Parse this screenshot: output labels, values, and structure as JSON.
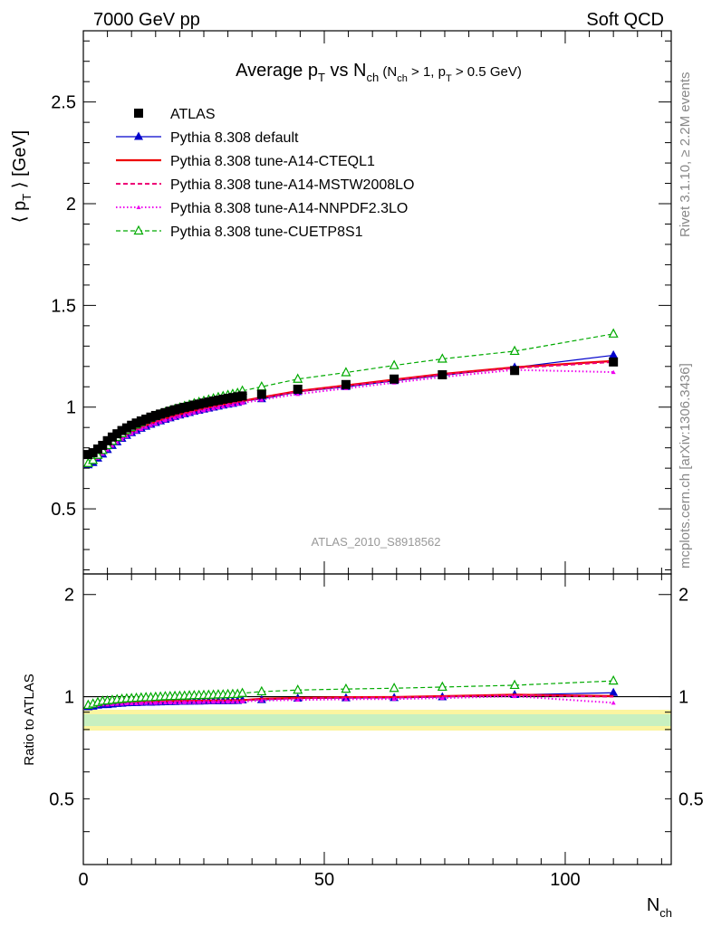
{
  "header": {
    "left": "7000 GeV pp",
    "right": "Soft QCD"
  },
  "side_labels": {
    "rivet": "Rivet 3.1.10, ≥ 2.2M events",
    "mcplots": "mcplots.cern.ch [arXiv:1306.3436]"
  },
  "analysis_tag": "ATLAS_2010_S8918562",
  "chart_data": {
    "type": "line",
    "title": "Average pT vs Nch (Nch > 1, pT > 0.5 GeV)",
    "xlabel": "Nch",
    "ylabel": "⟨ pT ⟩ [GeV]",
    "ratio_ylabel": "Ratio to ATLAS",
    "xlim": [
      0,
      122
    ],
    "ylim": [
      0.18,
      2.85
    ],
    "ratio_ylim": [
      0.32,
      2.3
    ],
    "x_ticks": [
      0,
      50,
      100
    ],
    "y_ticks": [
      0.5,
      1,
      1.5,
      2,
      2.5
    ],
    "ratio_ticks": [
      0.5,
      1,
      2
    ],
    "legend_position": "top-left",
    "x": [
      1,
      2,
      3,
      4,
      5,
      6,
      7,
      8,
      9,
      10,
      11,
      12,
      13,
      14,
      15,
      16,
      17,
      18,
      19,
      20,
      21,
      22,
      23,
      24,
      25,
      26,
      27,
      28,
      29,
      30,
      31,
      32,
      33,
      37,
      44.5,
      54.5,
      64.5,
      74.5,
      89.5,
      110
    ],
    "series": [
      {
        "name": "ATLAS",
        "color": "#000000",
        "style": "data",
        "values": [
          0.767,
          0.776,
          0.794,
          0.812,
          0.835,
          0.853,
          0.869,
          0.885,
          0.898,
          0.911,
          0.922,
          0.932,
          0.941,
          0.951,
          0.959,
          0.966,
          0.973,
          0.98,
          0.987,
          0.993,
          0.999,
          1.004,
          1.01,
          1.015,
          1.02,
          1.025,
          1.03,
          1.034,
          1.039,
          1.043,
          1.047,
          1.051,
          1.055,
          1.063,
          1.088,
          1.111,
          1.138,
          1.159,
          1.18,
          1.222
        ]
      },
      {
        "name": "Pythia 8.308 default",
        "color": "#0000cc",
        "style": "solid-tri",
        "values": [
          0.715,
          0.726,
          0.748,
          0.768,
          0.79,
          0.81,
          0.828,
          0.845,
          0.86,
          0.873,
          0.884,
          0.895,
          0.905,
          0.914,
          0.923,
          0.931,
          0.939,
          0.946,
          0.953,
          0.96,
          0.966,
          0.972,
          0.978,
          0.983,
          0.989,
          0.994,
          0.999,
          1.004,
          1.009,
          1.013,
          1.017,
          1.022,
          1.03,
          1.04,
          1.075,
          1.1,
          1.129,
          1.156,
          1.195,
          1.255
        ]
      },
      {
        "name": "Pythia 8.308 tune-A14-CTEQL1",
        "color": "#ee0000",
        "style": "solid",
        "values": [
          0.722,
          0.733,
          0.755,
          0.775,
          0.797,
          0.816,
          0.834,
          0.85,
          0.865,
          0.878,
          0.889,
          0.9,
          0.91,
          0.919,
          0.928,
          0.936,
          0.944,
          0.951,
          0.958,
          0.964,
          0.97,
          0.976,
          0.982,
          0.987,
          0.993,
          0.998,
          1.003,
          1.008,
          1.012,
          1.017,
          1.021,
          1.025,
          1.03,
          1.048,
          1.079,
          1.107,
          1.135,
          1.163,
          1.196,
          1.227
        ]
      },
      {
        "name": "Pythia 8.308 tune-A14-MSTW2008LO",
        "color": "#ee0077",
        "style": "dashed",
        "values": [
          0.72,
          0.731,
          0.753,
          0.773,
          0.795,
          0.814,
          0.832,
          0.848,
          0.863,
          0.876,
          0.887,
          0.898,
          0.908,
          0.917,
          0.926,
          0.934,
          0.942,
          0.949,
          0.956,
          0.962,
          0.968,
          0.974,
          0.98,
          0.985,
          0.991,
          0.996,
          1.001,
          1.006,
          1.01,
          1.015,
          1.019,
          1.023,
          1.028,
          1.045,
          1.076,
          1.104,
          1.132,
          1.16,
          1.192,
          1.222
        ]
      },
      {
        "name": "Pythia 8.308 tune-A14-NNPDF2.3LO",
        "color": "#ee00ee",
        "style": "dotted",
        "values": [
          0.718,
          0.729,
          0.75,
          0.77,
          0.791,
          0.81,
          0.827,
          0.843,
          0.857,
          0.87,
          0.881,
          0.892,
          0.902,
          0.911,
          0.919,
          0.927,
          0.935,
          0.942,
          0.949,
          0.955,
          0.961,
          0.967,
          0.973,
          0.978,
          0.984,
          0.989,
          0.994,
          0.999,
          1.003,
          1.008,
          1.012,
          1.016,
          1.02,
          1.036,
          1.064,
          1.092,
          1.12,
          1.148,
          1.183,
          1.172
        ]
      },
      {
        "name": "Pythia 8.308 tune-CUETP8S1",
        "color": "#00aa00",
        "style": "dashed-opentri",
        "values": [
          0.724,
          0.739,
          0.764,
          0.788,
          0.812,
          0.833,
          0.852,
          0.87,
          0.886,
          0.9,
          0.913,
          0.925,
          0.936,
          0.946,
          0.956,
          0.965,
          0.974,
          0.982,
          0.99,
          0.997,
          1.004,
          1.011,
          1.018,
          1.024,
          1.03,
          1.036,
          1.042,
          1.048,
          1.053,
          1.059,
          1.064,
          1.069,
          1.08,
          1.1,
          1.138,
          1.17,
          1.205,
          1.237,
          1.275,
          1.36
        ]
      }
    ]
  }
}
